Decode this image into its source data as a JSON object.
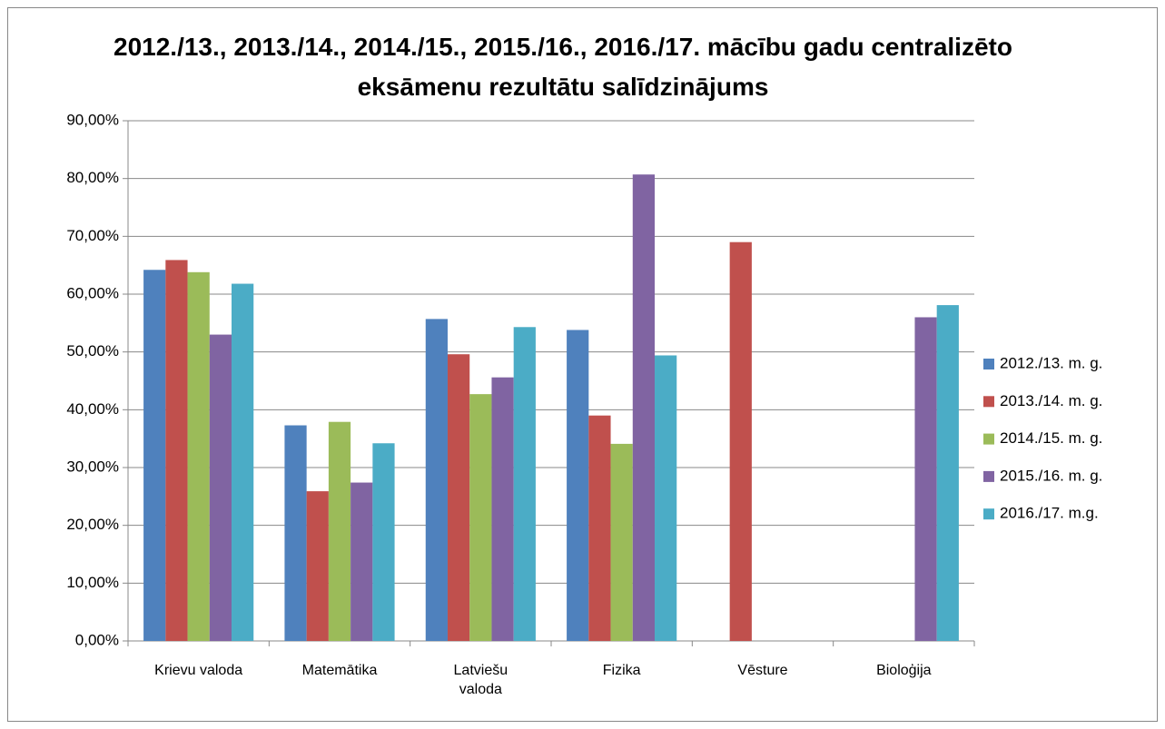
{
  "chart_data": {
    "type": "bar",
    "title": "2012./13., 2013./14., 2014./15., 2015./16., 2016./17. mācību gadu centralizēto eksāmenu rezultātu salīdzinājums",
    "categories": [
      "Krievu valoda",
      "Matemātika",
      "Latviešu valoda",
      "Fizika",
      "Vēsture",
      "Bioloģija"
    ],
    "series": [
      {
        "name": "2012./13. m. g.",
        "color": "#4f81bd",
        "values": [
          64.2,
          37.3,
          55.7,
          53.8,
          null,
          null
        ]
      },
      {
        "name": "2013./14. m. g.",
        "color": "#c0504d",
        "values": [
          65.9,
          25.9,
          49.6,
          39.0,
          69.0,
          null
        ]
      },
      {
        "name": "2014./15. m. g.",
        "color": "#9bbb59",
        "values": [
          63.8,
          37.9,
          42.7,
          34.1,
          null,
          null
        ]
      },
      {
        "name": "2015./16. m. g.",
        "color": "#8064a2",
        "values": [
          53.0,
          27.4,
          45.6,
          80.7,
          null,
          56.0
        ]
      },
      {
        "name": "2016./17. m.g.",
        "color": "#4bacc6",
        "values": [
          61.8,
          34.2,
          54.3,
          49.4,
          null,
          58.1
        ]
      }
    ],
    "ylim": [
      0,
      90
    ],
    "yticks": [
      {
        "value": 0,
        "label": "0,00%"
      },
      {
        "value": 10,
        "label": "10,00%"
      },
      {
        "value": 20,
        "label": "20,00%"
      },
      {
        "value": 30,
        "label": "30,00%"
      },
      {
        "value": 40,
        "label": "40,00%"
      },
      {
        "value": 50,
        "label": "50,00%"
      },
      {
        "value": 60,
        "label": "60,00%"
      },
      {
        "value": 70,
        "label": "70,00%"
      },
      {
        "value": 80,
        "label": "80,00%"
      },
      {
        "value": 90,
        "label": "90,00%"
      }
    ],
    "grid": true,
    "legend": "right"
  }
}
